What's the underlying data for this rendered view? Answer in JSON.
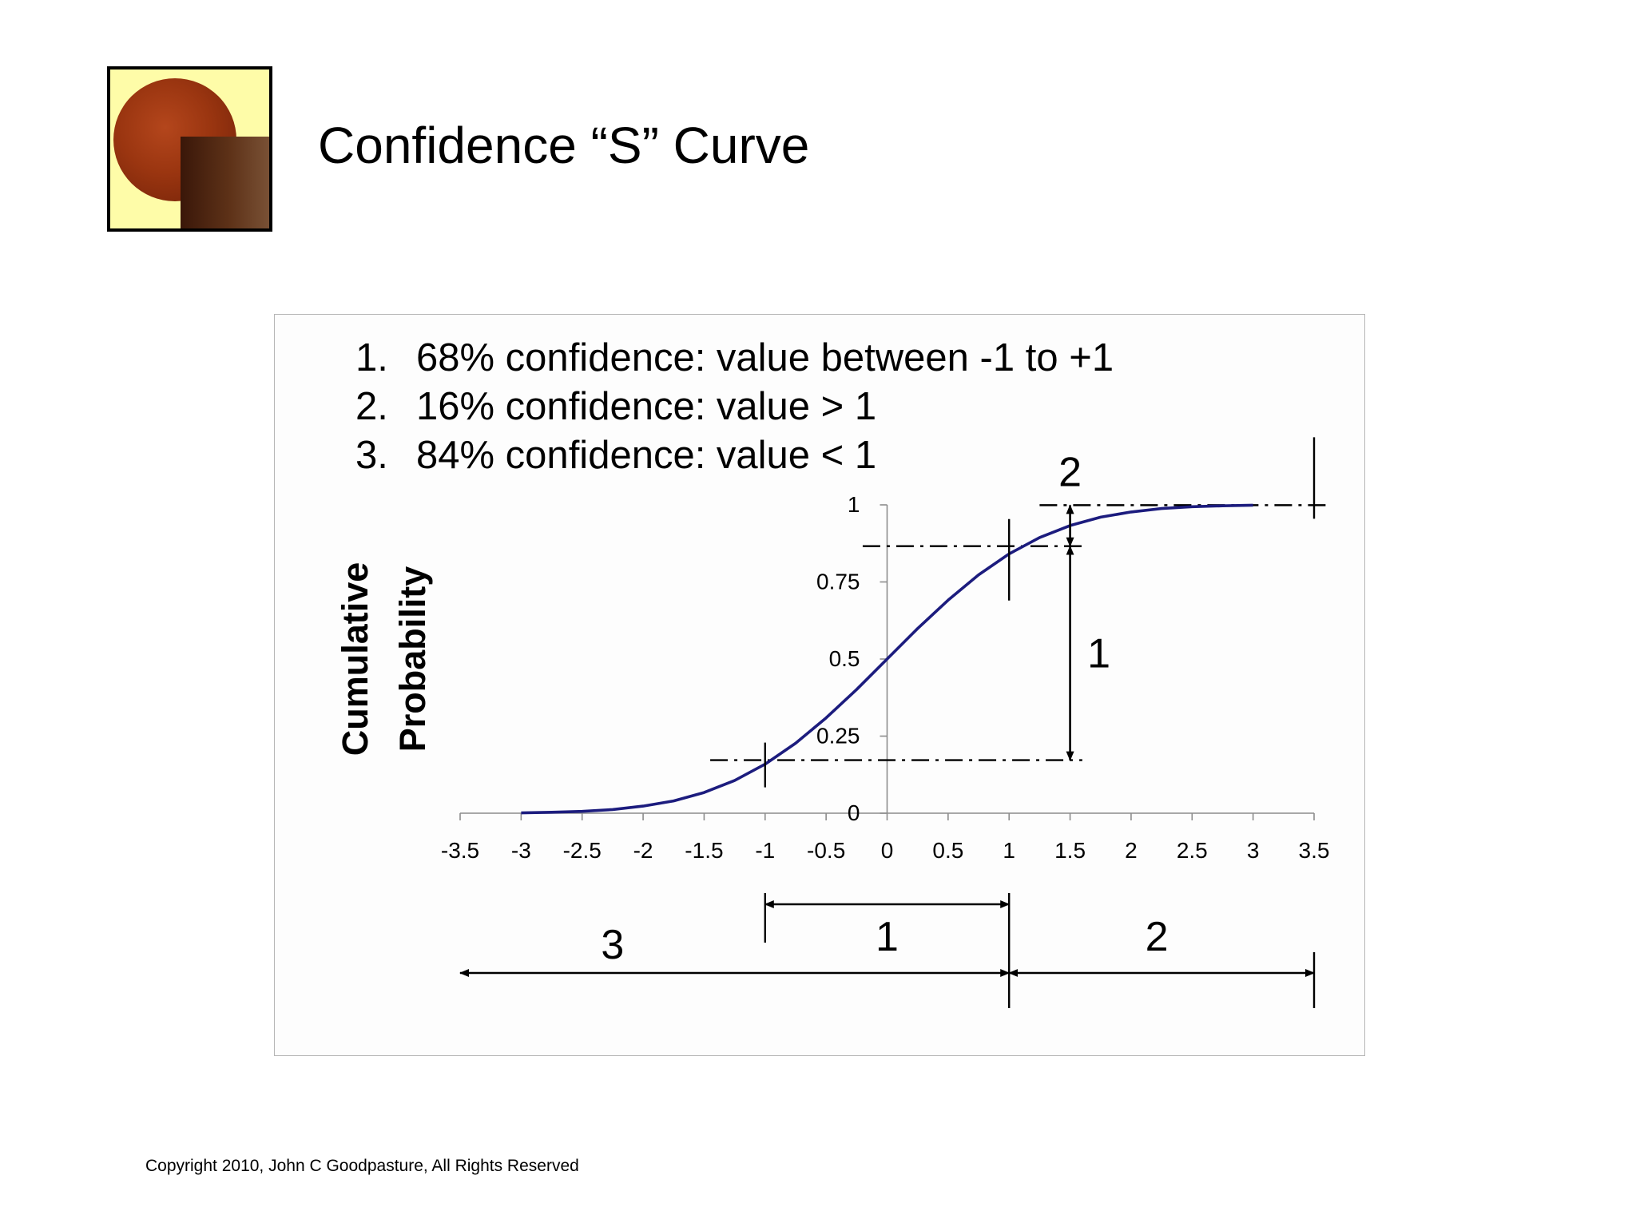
{
  "slide": {
    "title": "Confidence “S” Curve",
    "copyright": "Copyright 2010, John C Goodpasture, All Rights Reserved",
    "notes": [
      {
        "num": "1.",
        "text": "68% confidence: value between -1 to +1"
      },
      {
        "num": "2.",
        "text": "16% confidence: value > 1"
      },
      {
        "num": "3.",
        "text": "84% confidence: value < 1"
      }
    ]
  },
  "chart_data": {
    "type": "line",
    "title": "",
    "xlabel": "",
    "ylabel": "Cumulative Probability",
    "ylabel_lines": [
      "Cumulative",
      "Probability"
    ],
    "xlim": [
      -3.5,
      3.5
    ],
    "ylim": [
      0,
      1
    ],
    "x_ticks": [
      "-3.5",
      "-3",
      "-2.5",
      "-2",
      "-1.5",
      "-1",
      "-0.5",
      "0",
      "0.5",
      "1",
      "1.5",
      "2",
      "2.5",
      "3",
      "3.5"
    ],
    "y_ticks": [
      "0",
      "0.25",
      "0.5",
      "0.75",
      "1"
    ],
    "grid": false,
    "series": [
      {
        "x": [
          -3,
          -2.75,
          -2.5,
          -2.25,
          -2,
          -1.75,
          -1.5,
          -1.25,
          -1,
          -0.75,
          -0.5,
          -0.25,
          0,
          0.25,
          0.5,
          0.75,
          1,
          1.25,
          1.5,
          1.75,
          2,
          2.25,
          2.5,
          2.75,
          3
        ],
        "y": [
          0.001,
          0.003,
          0.006,
          0.012,
          0.023,
          0.04,
          0.067,
          0.106,
          0.159,
          0.227,
          0.309,
          0.401,
          0.5,
          0.599,
          0.691,
          0.773,
          0.841,
          0.894,
          0.933,
          0.96,
          0.977,
          0.988,
          0.994,
          0.997,
          0.999
        ],
        "color": "#1c1c7e"
      }
    ],
    "reference_lines": [
      {
        "type": "horizontal",
        "y": 0.999,
        "x_from": 1.25,
        "x_to": 3.6
      },
      {
        "type": "horizontal",
        "y": 0.866,
        "x_from": -0.2,
        "x_to": 1.6
      },
      {
        "type": "horizontal",
        "y": 0.172,
        "x_from": -1.45,
        "x_to": 1.6
      }
    ],
    "annotations": [
      {
        "label": "2",
        "kind": "vertical-span",
        "x": 1.5,
        "y_from": 0.866,
        "y_to": 0.999
      },
      {
        "label": "1",
        "kind": "vertical-span",
        "x": 1.5,
        "y_from": 0.172,
        "y_to": 0.866
      },
      {
        "label": "1",
        "kind": "horizontal-span",
        "x_from": -1,
        "x_to": 1
      },
      {
        "label": "3",
        "kind": "horizontal-span",
        "x_from": -3.5,
        "x_to": 1
      },
      {
        "label": "2",
        "kind": "horizontal-span",
        "x_from": 1,
        "x_to": 3.5
      }
    ]
  }
}
